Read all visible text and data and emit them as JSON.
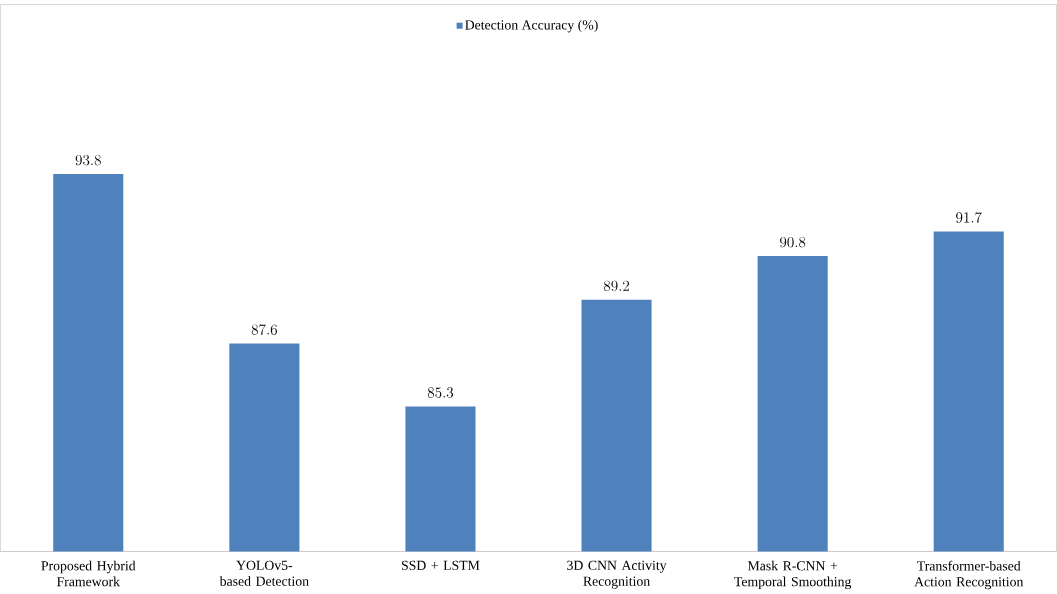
{
  "chart_data": {
    "type": "bar",
    "categories": [
      "Proposed Hybrid Framework",
      "YOLOv5-based Detection",
      "SSD + LSTM",
      "3D CNN Activity Recognition",
      "Mask R-CNN + Temporal Smoothing",
      "Transformer-based Action Recognition"
    ],
    "series": [
      {
        "name": "Detection Accuracy (%)",
        "color": "#4f81bd",
        "values": [
          93.8,
          87.6,
          85.3,
          89.2,
          90.8,
          91.7
        ]
      }
    ],
    "ylim": [
      80,
      100
    ],
    "data_labels": true,
    "legend": "top"
  }
}
